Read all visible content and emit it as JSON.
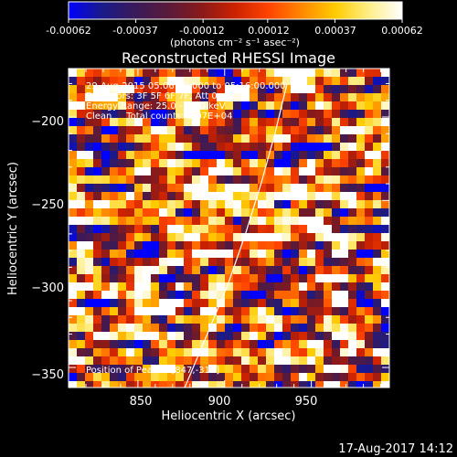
{
  "colorbar": {
    "tick_labels": [
      "-0.00062",
      "-0.00037",
      "-0.00012",
      "0.00012",
      "0.00037",
      "0.00062"
    ],
    "tick_values": [
      -0.00062,
      -0.00037,
      -0.00012,
      0.00012,
      0.00037,
      0.00062
    ],
    "range": [
      -0.00062,
      0.00062
    ],
    "unit_label": "(photons cm⁻² s⁻¹ asec⁻²)",
    "colormap": [
      "#0000ff",
      "#1a1a8a",
      "#3a1a5a",
      "#5a1a3a",
      "#8a1a1a",
      "#cc2200",
      "#ff4400",
      "#ff8800",
      "#ffcc00",
      "#ffee88",
      "#ffffff"
    ]
  },
  "chart_data": {
    "type": "heatmap",
    "title": "Reconstructed RHESSI Image",
    "xlabel": "Heliocentric X (arcsec)",
    "ylabel": "Heliocentric Y (arcsec)",
    "xlim": [
      810,
      995
    ],
    "ylim": [
      -362,
      -171
    ],
    "xticks": [
      850,
      900,
      950
    ],
    "xtick_labels": [
      "850",
      "900",
      "950"
    ],
    "yticks": [
      -350,
      -300,
      -250,
      -200
    ],
    "ytick_labels": [
      "−350",
      "−300",
      "−250",
      "−200"
    ],
    "annotations": [
      "29-Aug-2015 05:06:00.000 to 05:16:00.000",
      "Detectors: 3F 5F 6F 7F, Att 0",
      "Energy Range: 25.0 - 50.0 keV",
      "Clean     Total counts: 1.07E+04"
    ],
    "peak_label": "Position of Peak = [847,-312]",
    "limb_curve": [
      [
        877,
        -362
      ],
      [
        890,
        -330
      ],
      [
        902,
        -300
      ],
      [
        912,
        -270
      ],
      [
        921,
        -240
      ],
      [
        929,
        -210
      ],
      [
        936,
        -180
      ]
    ]
  },
  "footer": {
    "timestamp": "17-Aug-2017 14:12"
  },
  "colors": {
    "background": "#000000",
    "text": "#ffffff",
    "limb": "#ffffff"
  }
}
